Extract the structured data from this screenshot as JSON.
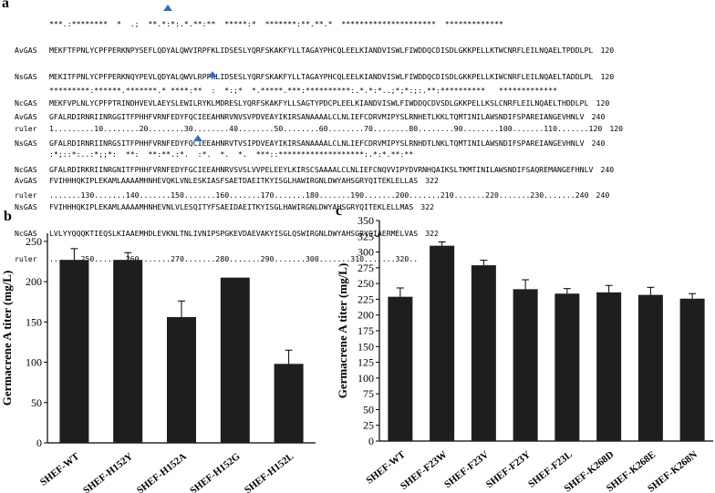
{
  "panel_a": {
    "label": "a",
    "blocks": [
      {
        "conservation": "***.:********  *  .;  **.*:*:.*.**:**  *****:*  *******:**.**.*  *********************  *************",
        "rows": [
          {
            "name": "AvGAS",
            "seq": "MEKFTFPNLYCPFPERKNPYSEFLQDYALQWVIRPFKLIDSESLYQRFSKAKFYLLTAGAYPHCQLEELKIANDVISWLFIWDDQCDISDLGKKPELLKTWCNRFLEILNQAELTPDDLPL",
            "end": "120"
          },
          {
            "name": "NsGAS",
            "seq": "MEKITFPNLYCPFPERKNQYPEVLQDYALQWVLRPFKLIDSESLYQRFSKAKFYLLTAGAYPHCQLEELKIANDVISWLFIWDDQCDISDLGKKPELLKIWCNRFLEILNQAELTADDLPL",
            "end": "120"
          },
          {
            "name": "NcGAS",
            "seq": "MEKFVPLNLYCPFPTRINDHVEVLAEYSLEWILRYKLMDRESLYQRFSKAKFYLLSAGTYPDCPLEELKIANDVISWLFIWDDQCDVSDLGKKPELLKSLCNRFLEILNQAELTHDDLPL",
            "end": "120"
          },
          {
            "name": "ruler",
            "seq": "1.........10........20........30........40........50........60........70........80........90........100.......110.......120",
            "end": "120"
          }
        ]
      },
      {
        "conservation": "*********:******.*******.* ****:**  :  *:;*  *.*****.***:**********:.*.*:*..;*;*:;:.**:**********   *************",
        "rows": [
          {
            "name": "AvGAS",
            "seq": "GFALRDIRNRIINRGGITFPHHFVRNFEDYFQCIEEAHNRVNVSVPDVEAYIKIRSANAAAALCLNLIEFCDRVMIPYSLRNHETLKKLTQMTINILAWSNDIFSPAREIANGEVHNLV",
            "end": "240"
          },
          {
            "name": "NsGAS",
            "seq": "GFALRDIRNRIINRGSITFPHHFVRNFEDYFQCIEEAHNRVTVSIPDVEAYIKIRSANAAAALCLNLIEFCDRVMIPYSLRNHDTLNKLTQMTINILAWSNDIFSPAREIANGEVHNLV",
            "end": "240"
          },
          {
            "name": "NcGAS",
            "seq": "GFALRDIRKRIINRGNITFPHHFVRNFEDYFGCIEEAHNRVSVSLVVPELEEYLKIRSCSAAAALCLNLIEFCNQVVIPYDVRNHQAIKSLTKMTINILAWSNDIFSAQREMANGEFHNLV",
            "end": "240"
          },
          {
            "name": "ruler",
            "seq": ".......130.......140.......150.......160.......170.......180.......190.......200.......210.......220.......230.......240",
            "end": "240"
          }
        ]
      },
      {
        "conservation": ":*;::*:..:*;;*:  **:  **:**.:*.  :*.  *.  *.  ***::*******************:.*:*.**:**",
        "rows": [
          {
            "name": "AvGAS",
            "seq": "FVIHHHQKIPLEKAMLAAAAMHNHEVQKLVNLESKIASFSAETDAEITKYISGLHAWIRGNLDWYAHSGRYQITEKLELLAS",
            "end": "322"
          },
          {
            "name": "NsGAS",
            "seq": "FVIHHHQKIPLEKAMLAAAAMHNHEVNLVLESQITYFSAEIDAEITKYISGLHAWIRGNLDWYAHSGRYQITEKLELLMAS",
            "end": "322"
          },
          {
            "name": "NcGAS",
            "seq": "LVLYYQQQKTIEQSLKIAAEMHDLEVKNLTNLIVNIPSPGKEVDAEVAKYISGLQSWIRGNLDWYAHSGRYQIAERMELVAS",
            "end": "322"
          },
          {
            "name": "ruler",
            "seq": ".......250.......260.......270.......280.......290.......300.......310.......320..",
            "end": ""
          }
        ]
      }
    ]
  },
  "chart_data": [
    {
      "panel": "b",
      "type": "bar",
      "title": "",
      "xlabel": "",
      "ylabel": "Germacrene A titer (mg/L)",
      "ylim": [
        0,
        260
      ],
      "yticks": [
        0,
        50,
        100,
        150,
        200,
        250
      ],
      "categories": [
        "SHEF-WT",
        "SHEF-H152Y",
        "SHEF-H152A",
        "SHEF-H152G",
        "SHEF-H152L"
      ],
      "values": [
        227,
        227,
        156,
        205,
        98
      ],
      "errors": [
        14,
        9,
        20,
        0,
        17
      ],
      "bar_color": "#1e1e1e",
      "grid": false
    },
    {
      "panel": "c",
      "type": "bar",
      "title": "",
      "xlabel": "",
      "ylabel": "Germacrene A titer (mg/L)",
      "ylim": [
        0,
        350
      ],
      "yticks": [
        0,
        25,
        50,
        75,
        100,
        125,
        150,
        175,
        200,
        225,
        250,
        275,
        300,
        325,
        350
      ],
      "categories": [
        "SHEF-WT",
        "SHEF-F23W",
        "SHEF-F23V",
        "SHEF-F23Y",
        "SHEF-F23L",
        "SHEF-K268D",
        "SHEF-K268E",
        "SHEF-K268N"
      ],
      "values": [
        229,
        310,
        279,
        241,
        234,
        236,
        232,
        226
      ],
      "errors": [
        14,
        6,
        8,
        15,
        8,
        11,
        12,
        8
      ],
      "bar_color": "#1e1e1e",
      "grid": false
    }
  ]
}
